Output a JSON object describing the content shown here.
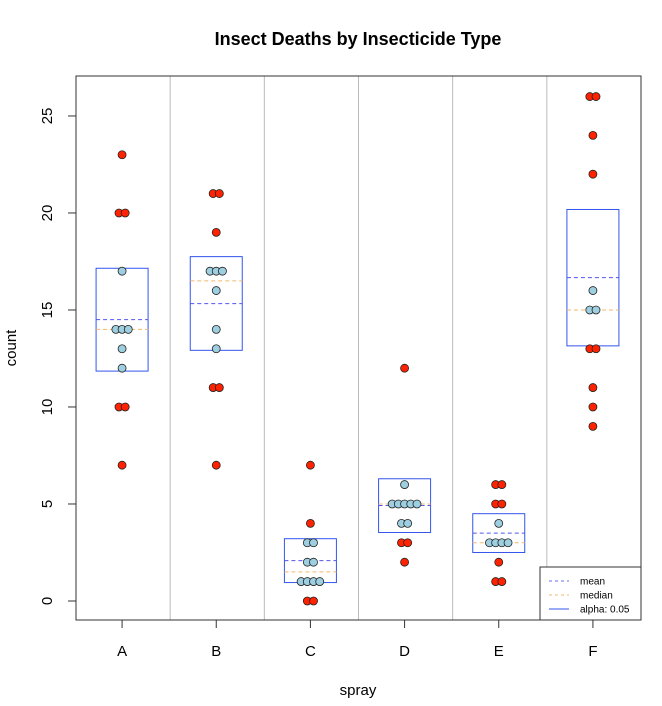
{
  "chart_data": {
    "type": "scatter",
    "subtype": "grouped beeswarm with confidence boxes",
    "title": "Insect Deaths by Insecticide Type",
    "xlabel": "spray",
    "ylabel": "count",
    "ylim": [
      -0.98,
      27.06
    ],
    "yticks": [
      0,
      5,
      10,
      15,
      20,
      25
    ],
    "categories": [
      "A",
      "B",
      "C",
      "D",
      "E",
      "F"
    ],
    "groups": [
      {
        "name": "A",
        "values": [
          7,
          10,
          10,
          12,
          13,
          14,
          14,
          14,
          17,
          20,
          20,
          23
        ],
        "mean": 14.5,
        "median": 14,
        "ci_low": 11.85,
        "ci_high": 17.15
      },
      {
        "name": "B",
        "values": [
          7,
          11,
          11,
          13,
          14,
          16,
          17,
          17,
          17,
          19,
          21,
          21
        ],
        "mean": 15.33,
        "median": 16.5,
        "ci_low": 12.92,
        "ci_high": 17.75
      },
      {
        "name": "C",
        "values": [
          0,
          0,
          1,
          1,
          1,
          1,
          2,
          2,
          3,
          3,
          4,
          7
        ],
        "mean": 2.08,
        "median": 1.5,
        "ci_low": 0.95,
        "ci_high": 3.21
      },
      {
        "name": "D",
        "values": [
          2,
          3,
          3,
          4,
          4,
          5,
          5,
          5,
          5,
          5,
          6,
          12
        ],
        "mean": 4.92,
        "median": 5,
        "ci_low": 3.53,
        "ci_high": 6.3
      },
      {
        "name": "E",
        "values": [
          1,
          1,
          2,
          3,
          3,
          3,
          3,
          4,
          5,
          5,
          6,
          6
        ],
        "mean": 3.5,
        "median": 3,
        "ci_low": 2.5,
        "ci_high": 4.5
      },
      {
        "name": "F",
        "values": [
          9,
          10,
          11,
          13,
          13,
          15,
          15,
          16,
          22,
          24,
          26,
          26
        ],
        "mean": 16.67,
        "median": 15,
        "ci_low": 13.15,
        "ci_high": 20.18
      }
    ],
    "legend": {
      "position": "bottom-right",
      "entries": [
        {
          "label": "mean",
          "style": "dashed",
          "color": "#6a6af0"
        },
        {
          "label": "median",
          "style": "dashed",
          "color": "#f5b86a"
        },
        {
          "label": "alpha: 0.05",
          "style": "solid",
          "color": "#3355ee"
        }
      ]
    },
    "colors": {
      "inside_point": "#9ecfe0",
      "outside_point": "#ff2200",
      "point_stroke": "#222222",
      "box": "#3355ee",
      "mean": "#5555ee",
      "median": "#f5b86a",
      "separator": "#bbbbbb"
    },
    "grid": false
  }
}
